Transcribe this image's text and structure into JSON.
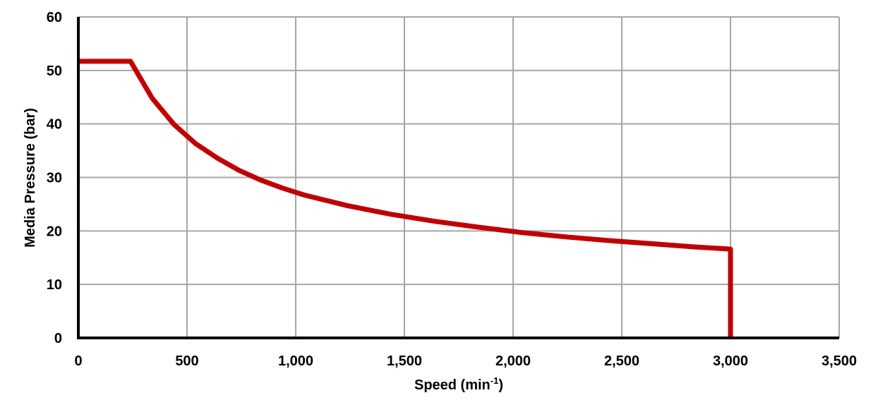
{
  "chart_data": {
    "type": "line",
    "title": "",
    "xlabel": "Speed (min-1)",
    "xlabel_main": "Speed (min",
    "xlabel_sup": "-1",
    "xlabel_close": ")",
    "ylabel": "Media Pressure (bar)",
    "xlim": [
      0,
      3500
    ],
    "ylim": [
      0,
      60
    ],
    "xticks": [
      0,
      500,
      1000,
      1500,
      2000,
      2500,
      3000,
      3500
    ],
    "xtick_labels": [
      "0",
      "500",
      "1,000",
      "1,500",
      "2,000",
      "2,500",
      "3,000",
      "3,500"
    ],
    "yticks": [
      0,
      10,
      20,
      30,
      40,
      50,
      60
    ],
    "ytick_labels": [
      "0",
      "10",
      "20",
      "30",
      "40",
      "50",
      "60"
    ],
    "grid": true,
    "legend": null,
    "series": [
      {
        "name": "Media Pressure",
        "color": "#c00000",
        "x": [
          0,
          240,
          340,
          440,
          540,
          640,
          740,
          840,
          940,
          1040,
          1240,
          1440,
          1640,
          1840,
          2040,
          2240,
          2440,
          2640,
          2840,
          3000,
          3000
        ],
        "y": [
          51.7,
          51.7,
          44.8,
          39.9,
          36.3,
          33.6,
          31.3,
          29.5,
          28.0,
          26.7,
          24.7,
          23.1,
          21.8,
          20.7,
          19.7,
          18.9,
          18.2,
          17.6,
          17.0,
          16.6,
          0
        ]
      }
    ]
  },
  "colors": {
    "line": "#c00000",
    "grid": "#a6a6a6",
    "axis": "#000000"
  }
}
